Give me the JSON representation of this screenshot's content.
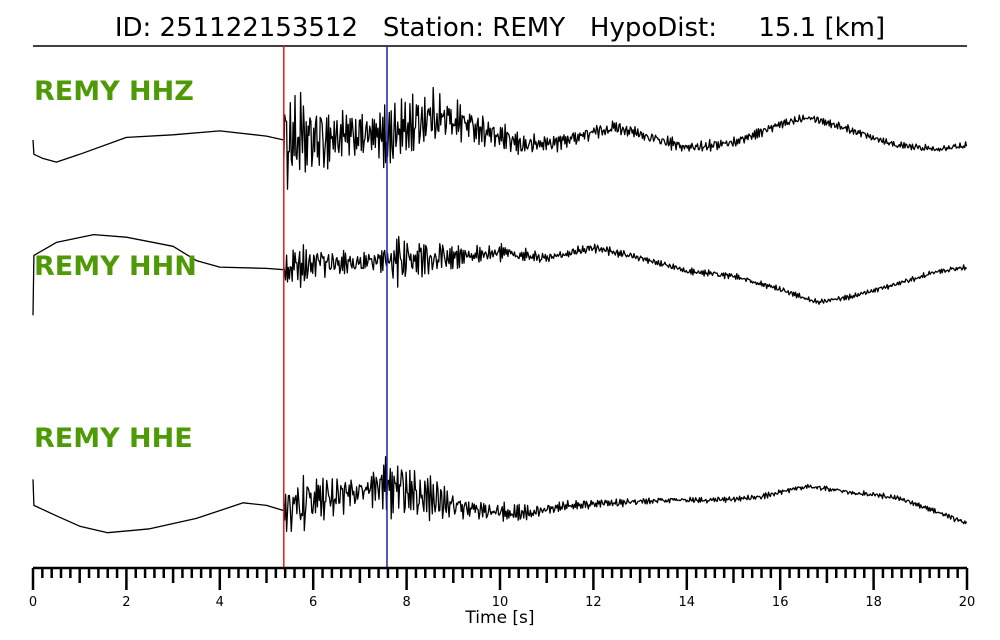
{
  "header": {
    "title": "ID: 251122153512   Station: REMY   HypoDist:     15.1 [km]"
  },
  "chart_data": {
    "type": "line",
    "title": "ID: 251122153512   Station: REMY   HypoDist:     15.1 [km]",
    "xlabel": "Time [s]",
    "ylabel": "",
    "xlim": [
      0,
      20
    ],
    "x_ticks_major": [
      0,
      2,
      4,
      6,
      8,
      10,
      12,
      14,
      16,
      18,
      20
    ],
    "x_tick_labels": [
      "0",
      "2",
      "4",
      "6",
      "8",
      "10",
      "12",
      "14",
      "16",
      "18",
      "20"
    ],
    "x_minor_step": 0.2,
    "markers": [
      {
        "name": "P",
        "x": 5.37,
        "color": "#e41a1c"
      },
      {
        "name": "S",
        "x": 7.58,
        "color": "#1f1fa8"
      }
    ],
    "label_color": "#4e9a06",
    "series": [
      {
        "name": "REMY HHZ",
        "pre_event": [
          [
            0,
            0.0
          ],
          [
            0.02,
            -0.55
          ],
          [
            0.2,
            -0.7
          ],
          [
            0.5,
            -0.85
          ],
          [
            1.0,
            -0.55
          ],
          [
            2.0,
            0.1
          ],
          [
            3.0,
            0.2
          ],
          [
            4.0,
            0.35
          ],
          [
            5.0,
            0.15
          ],
          [
            5.37,
            0.0
          ]
        ],
        "slow": [
          [
            5.37,
            0.0
          ],
          [
            6.0,
            0.0
          ],
          [
            7.0,
            0.2
          ],
          [
            7.58,
            0.1
          ],
          [
            8.5,
            0.9
          ],
          [
            9.2,
            0.7
          ],
          [
            10.0,
            0.1
          ],
          [
            10.5,
            -0.2
          ],
          [
            11.2,
            -0.1
          ],
          [
            12.0,
            0.3
          ],
          [
            12.5,
            0.5
          ],
          [
            13.2,
            0.1
          ],
          [
            14.0,
            -0.3
          ],
          [
            15.0,
            -0.1
          ],
          [
            16.0,
            0.6
          ],
          [
            16.6,
            0.9
          ],
          [
            17.5,
            0.4
          ],
          [
            18.5,
            -0.2
          ],
          [
            19.3,
            -0.35
          ],
          [
            20.0,
            -0.2
          ]
        ],
        "noise": [
          [
            5.37,
            2.0
          ],
          [
            5.5,
            2.8
          ],
          [
            6.5,
            1.6
          ],
          [
            7.4,
            1.1
          ],
          [
            7.6,
            2.2
          ],
          [
            8.5,
            1.6
          ],
          [
            9.5,
            0.9
          ],
          [
            11.0,
            0.5
          ],
          [
            13.0,
            0.35
          ],
          [
            16.0,
            0.25
          ],
          [
            20.0,
            0.2
          ]
        ]
      },
      {
        "name": "REMY HHN",
        "pre_event": [
          [
            0,
            -2.2
          ],
          [
            0.02,
            0.1
          ],
          [
            0.5,
            0.6
          ],
          [
            1.3,
            0.9
          ],
          [
            2.0,
            0.8
          ],
          [
            3.0,
            0.45
          ],
          [
            3.5,
            -0.1
          ],
          [
            4.0,
            -0.35
          ],
          [
            5.0,
            -0.4
          ],
          [
            5.37,
            -0.45
          ]
        ],
        "slow": [
          [
            5.37,
            -0.45
          ],
          [
            6.0,
            -0.2
          ],
          [
            7.0,
            -0.2
          ],
          [
            7.58,
            -0.1
          ],
          [
            8.5,
            0.0
          ],
          [
            10.0,
            0.2
          ],
          [
            11.0,
            0.0
          ],
          [
            12.0,
            0.4
          ],
          [
            13.0,
            0.0
          ],
          [
            14.0,
            -0.5
          ],
          [
            15.0,
            -0.7
          ],
          [
            16.0,
            -1.2
          ],
          [
            16.8,
            -1.7
          ],
          [
            17.5,
            -1.5
          ],
          [
            18.5,
            -1.0
          ],
          [
            19.3,
            -0.55
          ],
          [
            20.0,
            -0.35
          ]
        ],
        "noise": [
          [
            5.37,
            0.9
          ],
          [
            5.6,
            1.2
          ],
          [
            6.5,
            0.7
          ],
          [
            7.4,
            0.6
          ],
          [
            7.6,
            1.5
          ],
          [
            8.5,
            1.0
          ],
          [
            9.5,
            0.55
          ],
          [
            11.0,
            0.3
          ],
          [
            13.0,
            0.2
          ],
          [
            16.0,
            0.15
          ],
          [
            20.0,
            0.15
          ]
        ]
      },
      {
        "name": "REMY HHE",
        "pre_event": [
          [
            0,
            1.1
          ],
          [
            0.02,
            0.1
          ],
          [
            0.5,
            -0.3
          ],
          [
            1.0,
            -0.7
          ],
          [
            1.6,
            -0.95
          ],
          [
            2.5,
            -0.8
          ],
          [
            3.5,
            -0.4
          ],
          [
            4.5,
            0.2
          ],
          [
            5.0,
            0.1
          ],
          [
            5.37,
            -0.1
          ]
        ],
        "slow": [
          [
            5.37,
            -0.1
          ],
          [
            6.0,
            0.3
          ],
          [
            7.0,
            0.6
          ],
          [
            7.58,
            0.9
          ],
          [
            8.5,
            0.4
          ],
          [
            9.5,
            -0.1
          ],
          [
            10.5,
            -0.2
          ],
          [
            11.5,
            0.1
          ],
          [
            12.5,
            0.2
          ],
          [
            13.5,
            0.3
          ],
          [
            14.5,
            0.3
          ],
          [
            15.5,
            0.4
          ],
          [
            16.0,
            0.6
          ],
          [
            16.6,
            0.85
          ],
          [
            17.5,
            0.6
          ],
          [
            18.5,
            0.4
          ],
          [
            19.3,
            -0.1
          ],
          [
            20.0,
            -0.6
          ]
        ],
        "noise": [
          [
            5.37,
            1.4
          ],
          [
            5.6,
            1.6
          ],
          [
            6.5,
            1.0
          ],
          [
            7.4,
            0.9
          ],
          [
            7.6,
            2.5
          ],
          [
            8.3,
            1.5
          ],
          [
            9.5,
            0.6
          ],
          [
            11.0,
            0.35
          ],
          [
            13.0,
            0.2
          ],
          [
            16.0,
            0.15
          ],
          [
            20.0,
            0.15
          ]
        ]
      }
    ]
  }
}
